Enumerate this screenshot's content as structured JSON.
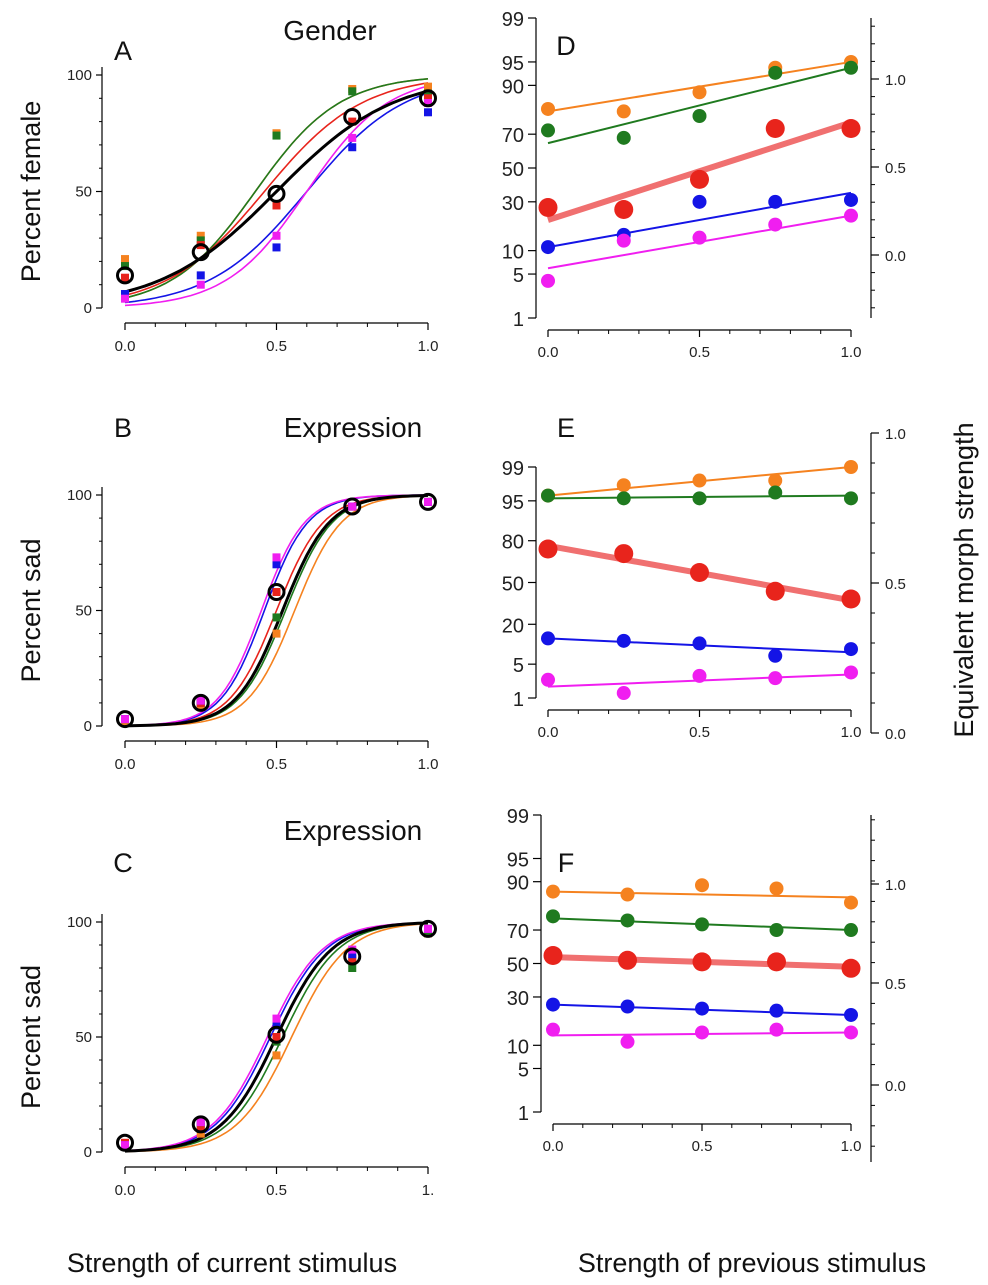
{
  "figure": {
    "left_xlabel": "Strength of current stimulus",
    "right_xlabel": "Strength of previous stimulus",
    "right_ylabel": "Equivalent morph strength"
  },
  "colors": {
    "black": "#000000",
    "orange": "#f5821f",
    "green": "#1f7a1f",
    "red": "#e8241c",
    "blue": "#1414e6",
    "magenta": "#f01ef0",
    "red_fit": "#f07070"
  },
  "chart_data": [
    {
      "panel": "A",
      "type": "scatter",
      "title": "Gender",
      "ylabel": "Percent female",
      "xlim": [
        0,
        1
      ],
      "ylim": [
        0,
        100
      ],
      "xticks": [
        "0.0",
        "0.5",
        "1.0"
      ],
      "yticks": [
        "0",
        "50",
        "100"
      ],
      "x": [
        0,
        0.25,
        0.5,
        0.75,
        1.0
      ],
      "series": [
        {
          "color": "orange",
          "marker": "square",
          "values": [
            21,
            31,
            75,
            94,
            95
          ],
          "fit": {
            "mid": 0.43,
            "slope": 7.2,
            "ymin": 0,
            "ymax": 100
          }
        },
        {
          "color": "green",
          "marker": "square",
          "values": [
            18,
            29,
            74,
            93,
            92
          ],
          "fit": {
            "mid": 0.43,
            "slope": 7.2,
            "ymin": 0,
            "ymax": 100
          }
        },
        {
          "color": "red",
          "marker": "square",
          "values": [
            13,
            27,
            44,
            80,
            90
          ],
          "fit": {
            "mid": 0.46,
            "slope": 6.2,
            "ymin": 0,
            "ymax": 100
          }
        },
        {
          "color": "blue",
          "marker": "square",
          "values": [
            6,
            14,
            26,
            69,
            84
          ],
          "fit": {
            "mid": 0.6,
            "slope": 6.2,
            "ymin": 0,
            "ymax": 100
          }
        },
        {
          "color": "magenta",
          "marker": "square",
          "values": [
            4,
            10,
            31,
            73,
            88
          ],
          "fit": {
            "mid": 0.6,
            "slope": 7.5,
            "ymin": 0,
            "ymax": 100
          }
        },
        {
          "color": "black",
          "marker": "circle",
          "values": [
            14,
            24,
            49,
            82,
            90
          ],
          "fit": {
            "mid": 0.5,
            "slope": 5.2,
            "ymin": 0,
            "ymax": 100
          },
          "fit_width": 3
        }
      ]
    },
    {
      "panel": "B",
      "type": "scatter",
      "title": "Expression",
      "ylabel": "Percent sad",
      "xlim": [
        0,
        1
      ],
      "ylim": [
        0,
        100
      ],
      "xticks": [
        "0.0",
        "0.5",
        "1.0"
      ],
      "yticks": [
        "0",
        "50",
        "100"
      ],
      "x": [
        0,
        0.25,
        0.5,
        0.75,
        1.0
      ],
      "series": [
        {
          "color": "orange",
          "marker": "square",
          "values": [
            2,
            9,
            40,
            95,
            97
          ],
          "fit": {
            "mid": 0.56,
            "slope": 13,
            "ymin": 0,
            "ymax": 100
          }
        },
        {
          "color": "green",
          "marker": "square",
          "values": [
            3,
            10,
            47,
            95,
            97
          ],
          "fit": {
            "mid": 0.53,
            "slope": 13,
            "ymin": 0,
            "ymax": 100
          }
        },
        {
          "color": "red",
          "marker": "square",
          "values": [
            3,
            10,
            58,
            95,
            97
          ],
          "fit": {
            "mid": 0.5,
            "slope": 13,
            "ymin": 0,
            "ymax": 100
          }
        },
        {
          "color": "blue",
          "marker": "square",
          "values": [
            3,
            11,
            70,
            95,
            97
          ],
          "fit": {
            "mid": 0.46,
            "slope": 14,
            "ymin": 0,
            "ymax": 100
          }
        },
        {
          "color": "magenta",
          "marker": "square",
          "values": [
            3,
            11,
            73,
            95,
            97
          ],
          "fit": {
            "mid": 0.45,
            "slope": 14,
            "ymin": 0,
            "ymax": 100
          }
        },
        {
          "color": "black",
          "marker": "circle",
          "values": [
            3,
            10,
            58,
            95,
            97
          ],
          "fit": {
            "mid": 0.52,
            "slope": 13,
            "ymin": 0,
            "ymax": 100
          },
          "fit_width": 3
        }
      ]
    },
    {
      "panel": "C",
      "type": "scatter",
      "title": "Expression",
      "ylabel": "Percent sad",
      "xlim": [
        0,
        1
      ],
      "ylim": [
        0,
        100
      ],
      "xticks": [
        "0.0",
        "0.5",
        "1."
      ],
      "yticks": [
        "0",
        "50",
        "100"
      ],
      "x": [
        0,
        0.25,
        0.5,
        0.75,
        1.0
      ],
      "series": [
        {
          "color": "orange",
          "marker": "square",
          "values": [
            3,
            8,
            42,
            83,
            95
          ],
          "fit": {
            "mid": 0.55,
            "slope": 11,
            "ymin": 0,
            "ymax": 100
          }
        },
        {
          "color": "green",
          "marker": "square",
          "values": [
            3,
            10,
            48,
            80,
            96
          ],
          "fit": {
            "mid": 0.52,
            "slope": 11,
            "ymin": 0,
            "ymax": 100
          }
        },
        {
          "color": "red",
          "marker": "square",
          "values": [
            4,
            11,
            50,
            84,
            97
          ],
          "fit": {
            "mid": 0.5,
            "slope": 11,
            "ymin": 0,
            "ymax": 100
          }
        },
        {
          "color": "blue",
          "marker": "square",
          "values": [
            3,
            13,
            55,
            86,
            97
          ],
          "fit": {
            "mid": 0.48,
            "slope": 11,
            "ymin": 0,
            "ymax": 100
          }
        },
        {
          "color": "magenta",
          "marker": "square",
          "values": [
            3,
            13,
            58,
            88,
            97
          ],
          "fit": {
            "mid": 0.47,
            "slope": 11,
            "ymin": 0,
            "ymax": 100
          }
        },
        {
          "color": "black",
          "marker": "circle",
          "values": [
            4,
            12,
            51,
            85,
            97
          ],
          "fit": {
            "mid": 0.5,
            "slope": 11,
            "ymin": 0,
            "ymax": 100
          },
          "fit_width": 3
        }
      ]
    },
    {
      "panel": "D",
      "type": "scatter",
      "yscale": "probit",
      "xlim": [
        0,
        1
      ],
      "xticks": [
        "0.0",
        "0.5",
        "1.0"
      ],
      "yticks": [
        "1",
        "5",
        "10",
        "30",
        "50",
        "70",
        "90",
        "95",
        "99"
      ],
      "right_yticks": [
        "0.0",
        "0.5",
        "1.0"
      ],
      "x": [
        0,
        0.25,
        0.5,
        0.75,
        1.0
      ],
      "series": [
        {
          "color": "orange",
          "values": [
            82,
            81,
            88,
            94,
            95
          ],
          "fit": [
            81,
            95
          ]
        },
        {
          "color": "green",
          "values": [
            72,
            68,
            79,
            93,
            94
          ],
          "fit": [
            65,
            94
          ]
        },
        {
          "color": "red",
          "values": [
            27,
            26,
            43,
            73,
            73
          ],
          "fit": [
            21,
            76
          ],
          "big": true
        },
        {
          "color": "blue",
          "values": [
            11,
            15,
            30,
            30,
            31
          ],
          "fit": [
            11,
            35
          ]
        },
        {
          "color": "magenta",
          "values": [
            4,
            13,
            14,
            19,
            23
          ],
          "fit": [
            6,
            23
          ]
        }
      ]
    },
    {
      "panel": "E",
      "type": "scatter",
      "yscale": "probit",
      "xlim": [
        0,
        1
      ],
      "xticks": [
        "0.0",
        "0.5",
        "1.0"
      ],
      "yticks": [
        "1",
        "5",
        "20",
        "50",
        "80",
        "95",
        "99"
      ],
      "right_yticks": [
        "0.0",
        "0.5",
        "1.0"
      ],
      "x": [
        0,
        0.25,
        0.5,
        0.75,
        1.0
      ],
      "series": [
        {
          "color": "orange",
          "values": [
            96,
            97.5,
            98,
            98,
            99
          ],
          "fit": [
            96,
            99
          ]
        },
        {
          "color": "green",
          "values": [
            96,
            95.5,
            95.5,
            96.5,
            95.5
          ],
          "fit": [
            95.5,
            96
          ]
        },
        {
          "color": "red",
          "values": [
            75,
            72,
            58,
            43,
            37
          ],
          "fit": [
            77,
            36
          ],
          "big": true
        },
        {
          "color": "blue",
          "values": [
            13,
            12,
            11,
            7,
            9
          ],
          "fit": [
            13,
            8
          ]
        },
        {
          "color": "magenta",
          "values": [
            2.5,
            1.3,
            3,
            2.7,
            3.5
          ],
          "fit": [
            1.8,
            3.2
          ]
        }
      ]
    },
    {
      "panel": "F",
      "type": "scatter",
      "yscale": "probit",
      "xlim": [
        0,
        1
      ],
      "xticks": [
        "0.0",
        "0.5",
        "1.0"
      ],
      "yticks": [
        "1",
        "5",
        "10",
        "30",
        "50",
        "70",
        "90",
        "95",
        "99"
      ],
      "right_yticks": [
        "0.0",
        "0.5",
        "1.0"
      ],
      "x": [
        0,
        0.25,
        0.5,
        0.75,
        1.0
      ],
      "series": [
        {
          "color": "orange",
          "values": [
            87,
            86,
            89,
            88,
            83
          ],
          "fit": [
            87,
            85
          ]
        },
        {
          "color": "green",
          "values": [
            77,
            75,
            73,
            70,
            70
          ],
          "fit": [
            76,
            70
          ]
        },
        {
          "color": "red",
          "values": [
            55,
            52,
            51,
            51,
            47
          ],
          "fit": [
            54,
            48
          ],
          "big": true
        },
        {
          "color": "blue",
          "values": [
            26,
            25,
            24,
            23,
            21
          ],
          "fit": [
            26,
            21
          ]
        },
        {
          "color": "magenta",
          "values": [
            15,
            11,
            14,
            15,
            14
          ],
          "fit": [
            13,
            14
          ]
        }
      ]
    }
  ]
}
